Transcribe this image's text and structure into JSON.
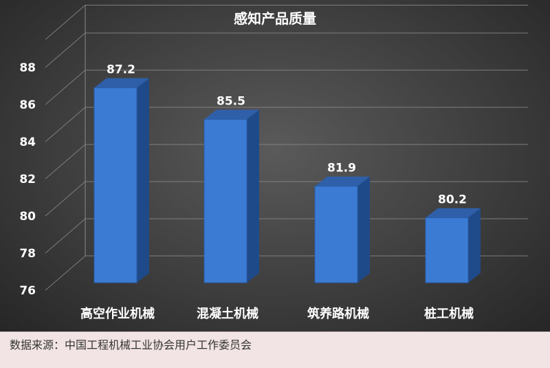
{
  "chart_data": {
    "type": "bar",
    "title": "感知产品质量",
    "categories": [
      "高空作业机械",
      "混凝土机械",
      "筑养路机械",
      "桩工机械"
    ],
    "values": [
      87.2,
      85.5,
      81.9,
      80.2
    ],
    "value_labels": [
      "87.2",
      "85.5",
      "81.9",
      "80.2"
    ],
    "y_ticks": [
      76,
      78,
      80,
      82,
      84,
      86,
      88
    ],
    "y_tick_labels": [
      "76",
      "78",
      "80",
      "82",
      "84",
      "86",
      "88"
    ],
    "ylim": [
      76,
      89.5
    ],
    "xlabel": "",
    "ylabel": "",
    "grid": true,
    "legend": "none",
    "style": "3d-column",
    "colors": {
      "bar_front": "#3b7bd4",
      "bar_top": "#2f5fa8",
      "bar_side": "#1f4a8a",
      "grid": "#8a8a8a",
      "text": "#ffffff"
    }
  },
  "source": "数据来源：中国工程机械工业协会用户工作委员会"
}
